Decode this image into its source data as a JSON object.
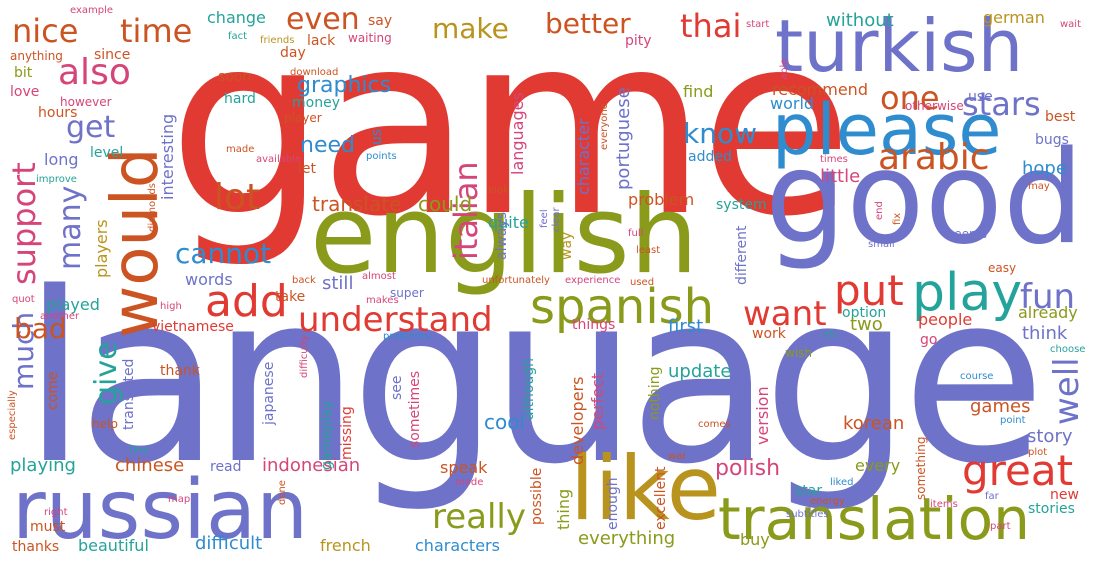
{
  "colors": {
    "red": "#e03a33",
    "periwinkle": "#6e72c8",
    "olive": "#8a9a1a",
    "blue": "#2e8ccf",
    "orange": "#cc5422",
    "teal": "#24a39a",
    "gold": "#b8941e",
    "pink": "#d6457a"
  },
  "words": {
    "game": "game",
    "language": "language",
    "english": "english",
    "good": "good",
    "turkish": "turkish",
    "please": "please",
    "russian": "russian",
    "like": "like",
    "translation": "translation",
    "would": "would",
    "spanish": "spanish",
    "play": "play",
    "arabic": "arabic",
    "great": "great",
    "understand": "understand",
    "add": "add",
    "italian": "italian",
    "support": "support",
    "also": "also",
    "get": "get",
    "nice": "nice",
    "time": "time",
    "even": "even",
    "make": "make",
    "better": "better",
    "thai": "thai",
    "one": "one",
    "stars": "stars",
    "know": "know",
    "lot": "lot",
    "cannot": "cannot",
    "many": "many",
    "much": "much",
    "bad": "bad",
    "give": "give",
    "put": "put",
    "fun": "fun",
    "want": "want",
    "really": "really",
    "well": "well",
    "graphics": "graphics",
    "need": "need",
    "hope": "hope",
    "little": "little",
    "could": "could",
    "translate": "translate",
    "languages": "languages",
    "portuguese": "portuguese",
    "character": "character",
    "problem": "problem",
    "still": "still",
    "words": "words",
    "played": "played",
    "players": "players",
    "long": "long",
    "level": "level",
    "hours": "hours",
    "love": "love",
    "interesting": "interesting",
    "change": "change",
    "lack": "lack",
    "day": "day",
    "money": "money",
    "player": "player",
    "hard": "hard",
    "without": "without",
    "german": "german",
    "recommend": "recommend",
    "world": "world",
    "find": "find",
    "best": "best",
    "bugs": "bugs",
    "use": "use",
    "otherwise": "otherwise",
    "system": "system",
    "already": "already",
    "think": "think",
    "people": "people",
    "option": "option",
    "two": "two",
    "first": "first",
    "things": "things",
    "update": "update",
    "games": "games",
    "story": "story",
    "korean": "korean",
    "version": "version",
    "work": "work",
    "wish": "wish",
    "go": "go",
    "polish": "polish",
    "every": "every",
    "something": "something",
    "new": "new",
    "stories": "stories",
    "star": "star",
    "buy": "buy",
    "everything": "everything",
    "characters": "characters",
    "french": "french",
    "difficult": "difficult",
    "beautiful": "beautiful",
    "thanks": "thanks",
    "must": "must",
    "playing": "playing",
    "chinese": "chinese",
    "indonesian": "indonesian",
    "cool": "cool",
    "speak": "speak",
    "thing": "thing",
    "possible": "possible",
    "enough": "enough",
    "excellent": "excellent",
    "developers": "developers",
    "perfect": "perfect",
    "although": "although",
    "nothing": "nothing",
    "sometimes": "sometimes",
    "see": "see",
    "missing": "missing",
    "gameplay": "gameplay",
    "japanese": "japanese",
    "read": "read",
    "thank": "thank",
    "translated": "translated",
    "come": "come",
    "help": "help",
    "vietnamese": "vietnamese",
    "take": "take",
    "super": "super",
    "quite": "quite",
    "always": "always",
    "way": "way",
    "different": "different",
    "let": "let",
    "us": "us",
    "say": "say",
    "pity": "pity",
    "bit": "bit",
    "since": "since",
    "anything": "anything",
    "however": "however",
    "soon": "soon",
    "download": "download",
    "waiting": "waiting",
    "friends": "friends",
    "fact": "fact",
    "example": "example",
    "improve": "improve",
    "diamonds": "diamonds",
    "made": "made",
    "available": "available",
    "points": "points",
    "added": "added",
    "everyone": "everyone",
    "times": "times",
    "may": "may",
    "start": "start",
    "wait": "wait",
    "able": "able",
    "fix": "fix",
    "end": "end",
    "seems": "seems",
    "small": "small",
    "easy": "easy",
    "etc": "etc",
    "choose": "choose",
    "course": "course",
    "point": "point",
    "plot": "plot",
    "far": "far",
    "part": "part",
    "items": "items",
    "energy": "energy",
    "subtitles": "subtitles",
    "liked": "liked",
    "comes": "comes",
    "war": "war",
    "mode": "mode",
    "done": "done",
    "map": "map",
    "fine": "fine",
    "right": "right",
    "especially": "especially",
    "quot": "quot",
    "another": "another",
    "high": "high",
    "back": "back",
    "almost": "almost",
    "makes": "makes",
    "problems": "problems",
    "difficulty": "difficulty",
    "unfortunately": "unfortunately",
    "experience": "experience",
    "used": "used",
    "full": "full",
    "least": "least",
    "feel": "feel",
    "clear": "clear",
    "look": "look"
  }
}
